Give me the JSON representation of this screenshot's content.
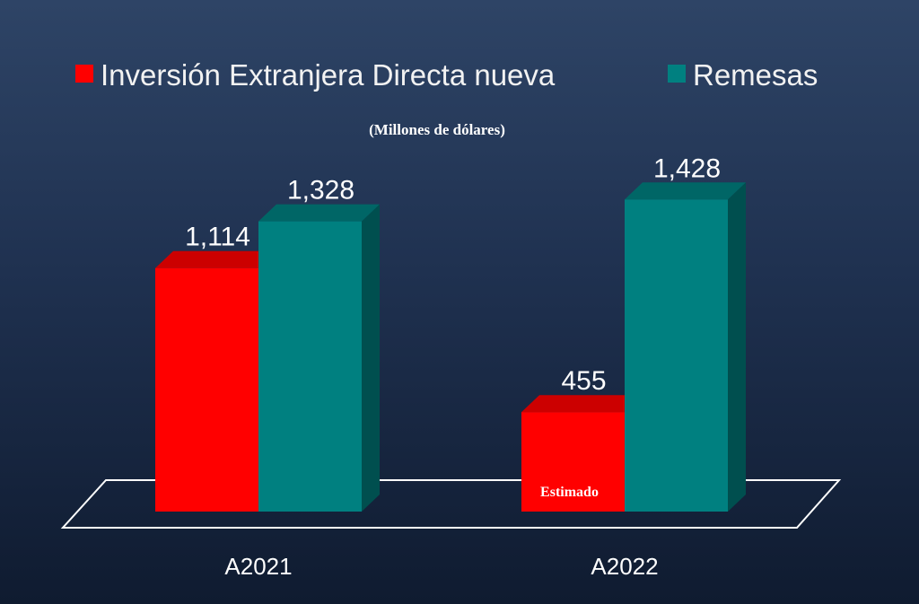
{
  "colors": {
    "background_top": "#2e4466",
    "background_bottom": "#0f1b30",
    "ied": "#ff0000",
    "remesas": "#008080",
    "text": "#ffffff"
  },
  "chart_data": {
    "type": "bar",
    "title": "",
    "subtitle": "(Millones de dólares)",
    "categories": [
      "A2021",
      "A2022"
    ],
    "series": [
      {
        "name": "Inversión Extranjera Directa nueva",
        "values": [
          1114,
          455
        ],
        "labels": [
          "1,114",
          "455"
        ],
        "color": "#ff0000"
      },
      {
        "name": "Remesas",
        "values": [
          1328,
          1428
        ],
        "labels": [
          "1,328",
          "1,428"
        ],
        "color": "#008080"
      }
    ],
    "ylim": [
      0,
      1500
    ],
    "grid": false,
    "legend_position": "top",
    "annotations": [
      {
        "category": "A2022",
        "series": "Inversión Extranjera Directa nueva",
        "text": "Estimado"
      }
    ],
    "style": "3d-bars"
  }
}
